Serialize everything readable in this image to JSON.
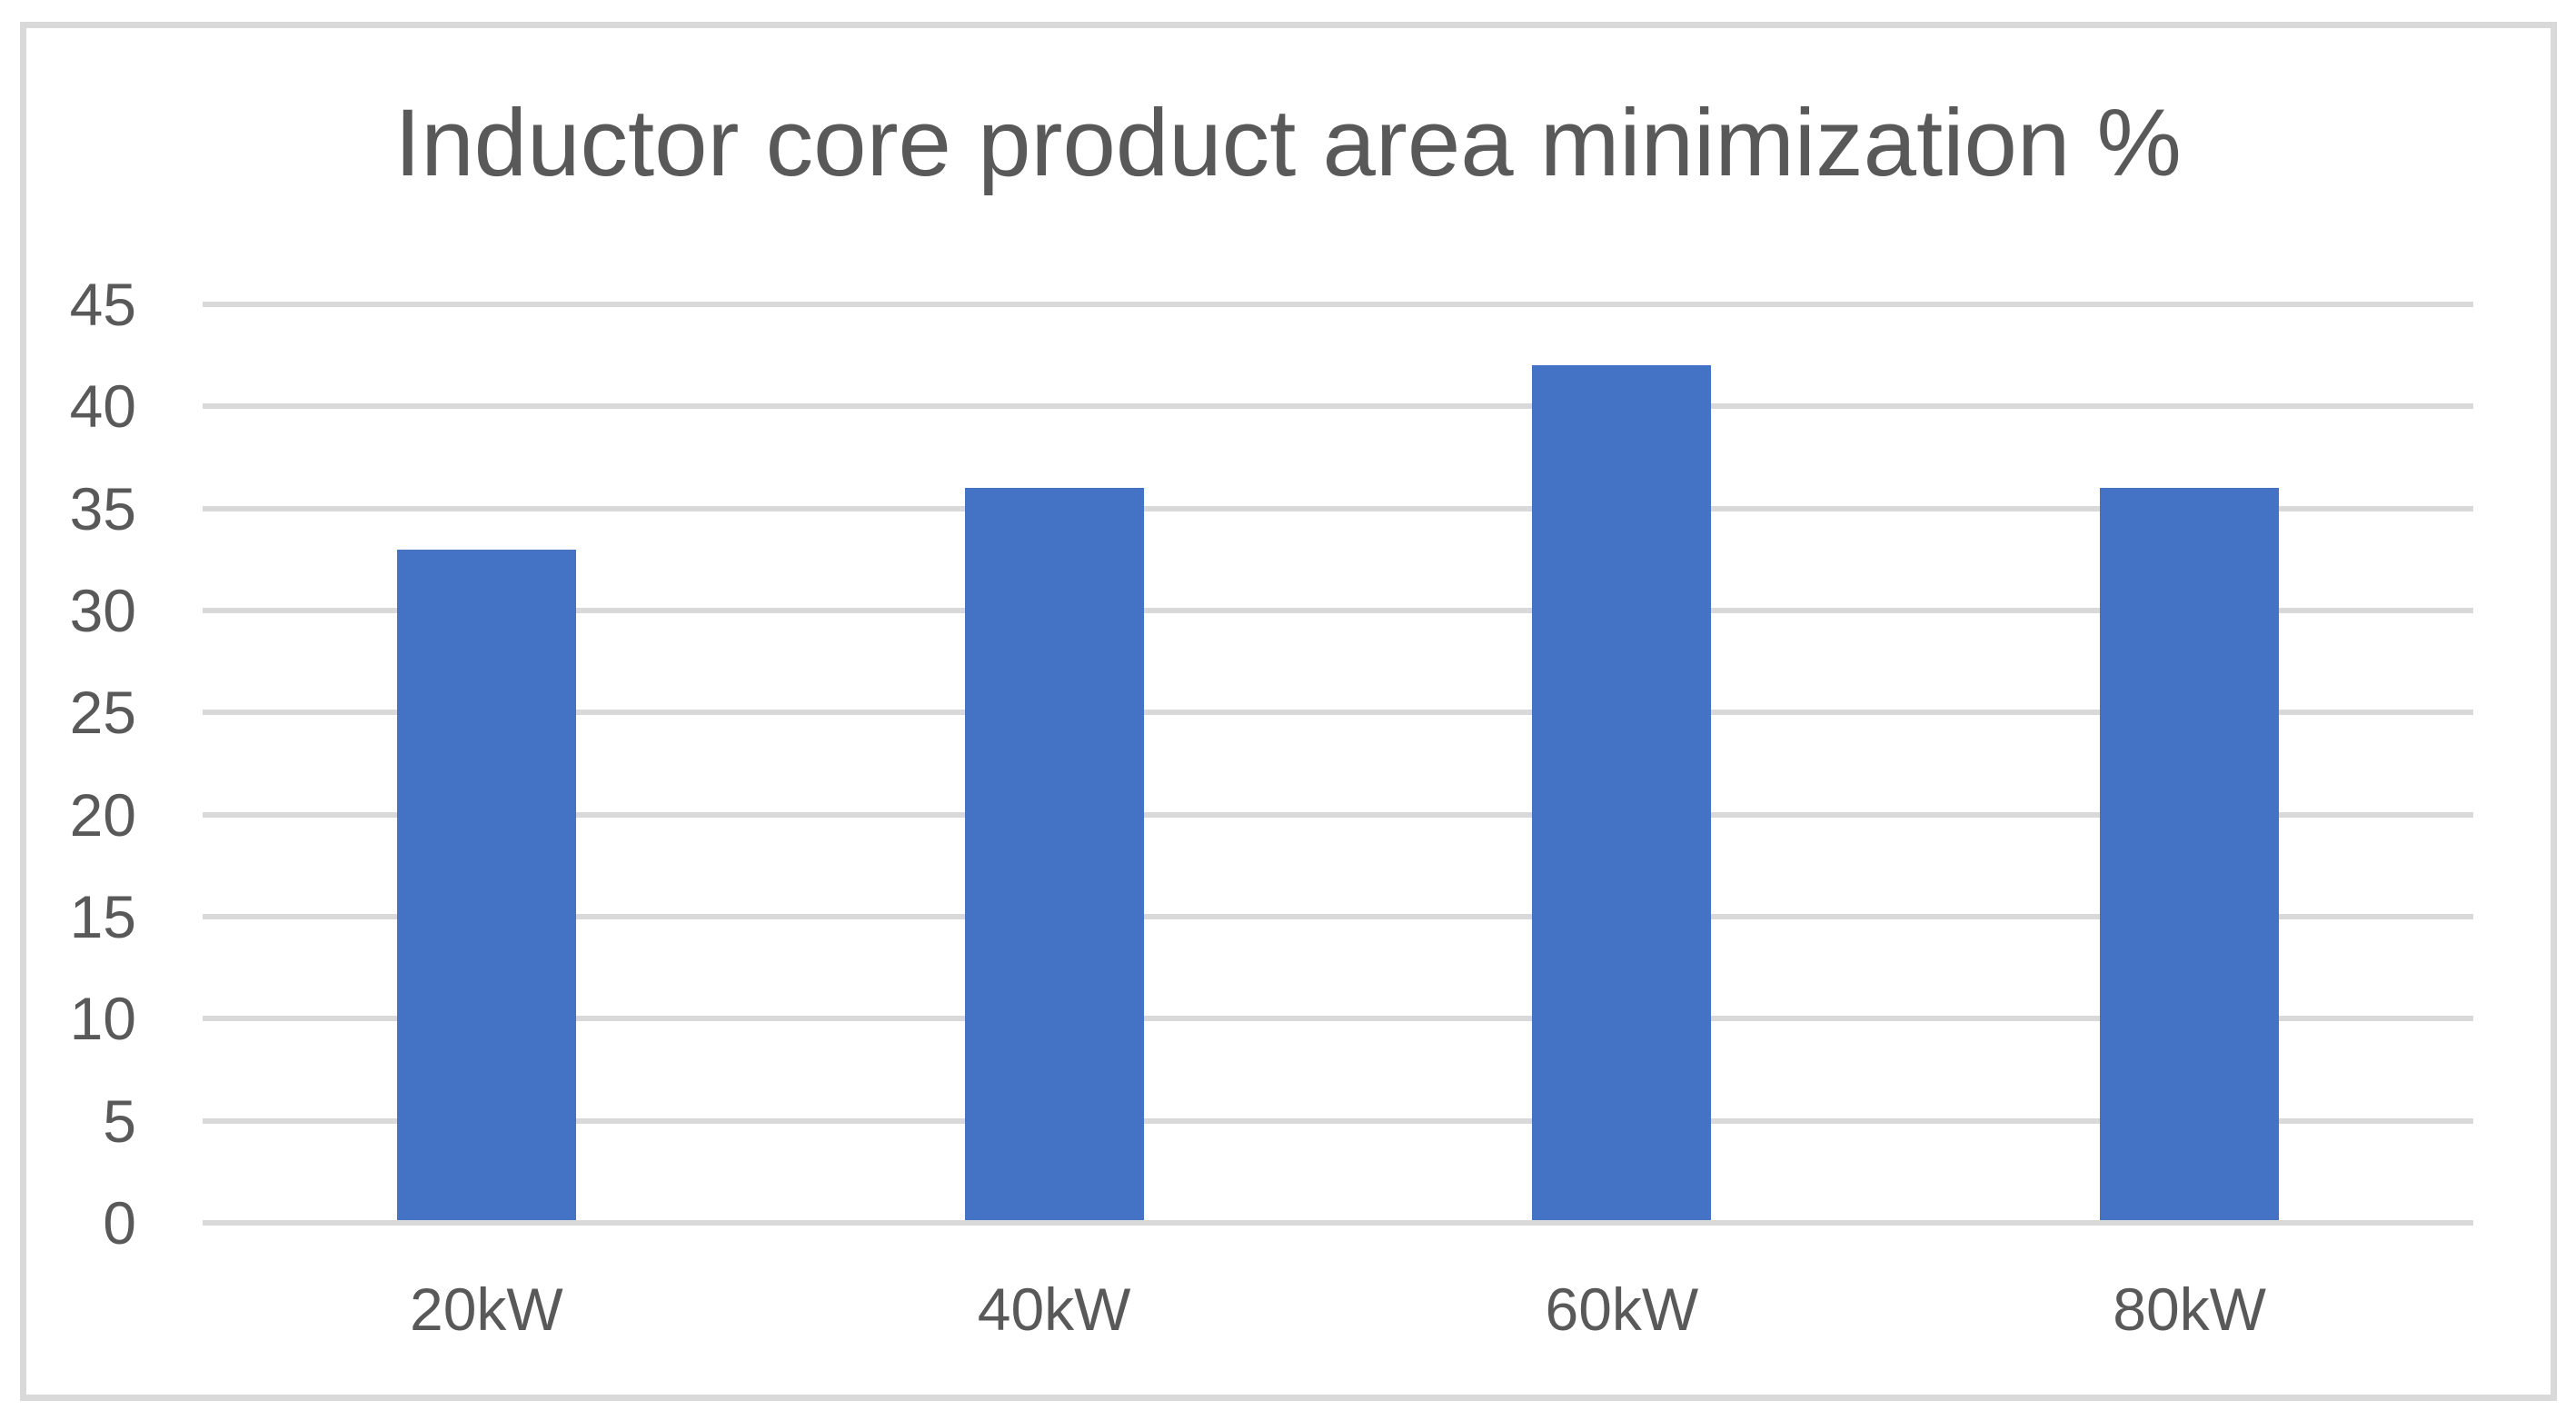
{
  "chart_data": {
    "type": "bar",
    "title": "Inductor core product area minimization %",
    "categories": [
      "20kW",
      "40kW",
      "60kW",
      "80kW"
    ],
    "values": [
      33,
      36,
      42,
      36
    ],
    "xlabel": "",
    "ylabel": "",
    "ylim": [
      0,
      45
    ],
    "ytick_step": 5,
    "yticks": [
      0,
      5,
      10,
      15,
      20,
      25,
      30,
      35,
      40,
      45
    ],
    "grid": true,
    "legend": false,
    "colors": {
      "bar": "#4472C4",
      "gridline": "#D9D9D9",
      "text": "#595959",
      "frame_border": "#D9D9D9",
      "background": "#FFFFFF"
    }
  }
}
